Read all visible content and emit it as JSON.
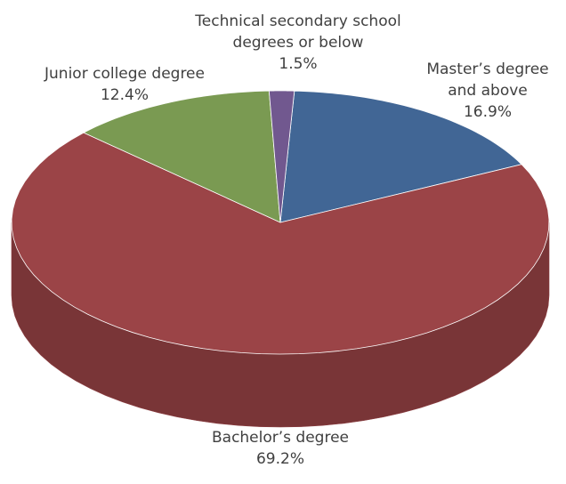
{
  "chart_data": {
    "type": "pie",
    "categories": [
      "Master’s degree and above",
      "Bachelor’s degree",
      "Junior college degree",
      "Technical secondary school degrees or below"
    ],
    "values": [
      16.9,
      69.2,
      12.4,
      1.5
    ],
    "value_labels": [
      "16.9%",
      "69.2%",
      "12.4%",
      "1.5%"
    ],
    "colors": [
      "#416695",
      "#9b4447",
      "#7a9a52",
      "#71588f"
    ]
  }
}
